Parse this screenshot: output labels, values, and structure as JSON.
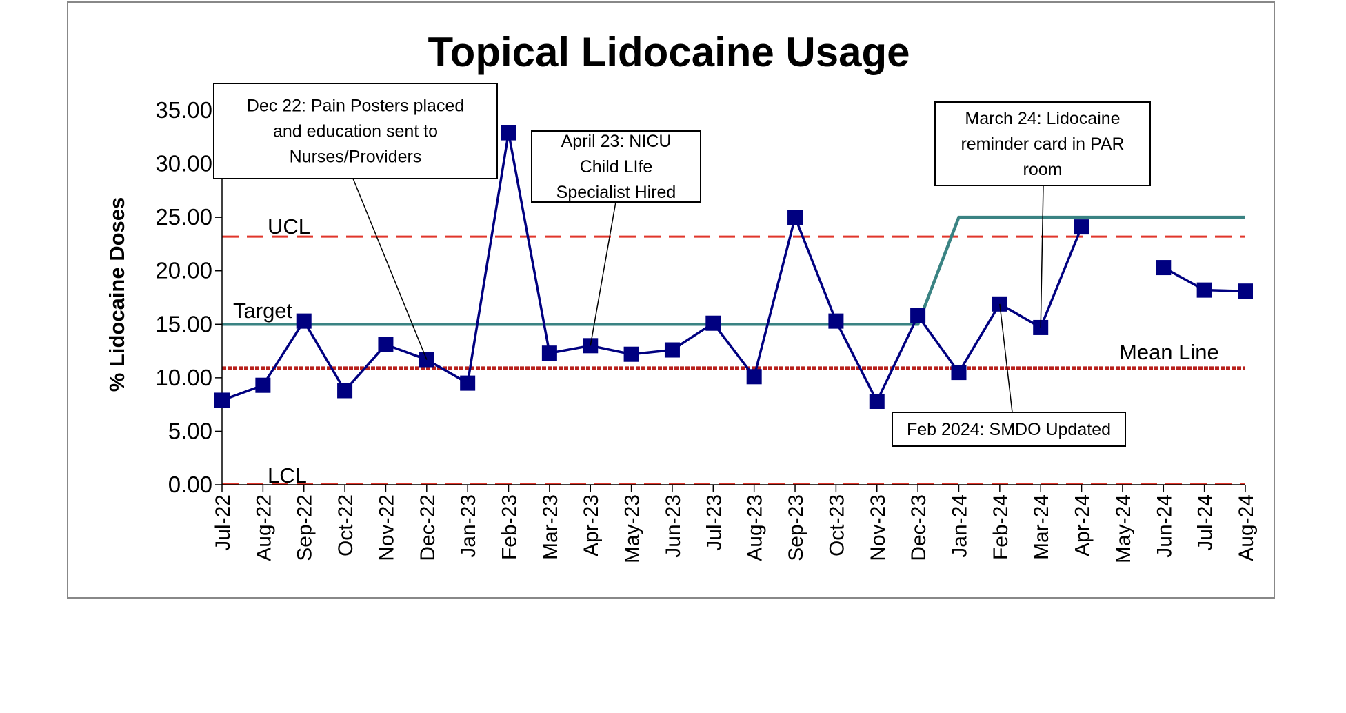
{
  "chart_data": {
    "type": "line",
    "title": "Topical Lidocaine Usage",
    "xlabel": "",
    "ylabel": "% Lidocaine Doses",
    "ylim": [
      0,
      35
    ],
    "yticks": [
      "0.00",
      "5.00",
      "10.00",
      "15.00",
      "20.00",
      "25.00",
      "30.00",
      "35.00"
    ],
    "categories": [
      "Jul-22",
      "Aug-22",
      "Sep-22",
      "Oct-22",
      "Nov-22",
      "Dec-22",
      "Jan-23",
      "Feb-23",
      "Mar-23",
      "Apr-23",
      "May-23",
      "Jun-23",
      "Jul-23",
      "Aug-23",
      "Sep-23",
      "Oct-23",
      "Nov-23",
      "Dec-23",
      "Jan-24",
      "Feb-24",
      "Mar-24",
      "Apr-24",
      "May-24",
      "Jun-24",
      "Jul-24",
      "Aug-24"
    ],
    "series": [
      {
        "values": [
          7.9,
          9.3,
          15.3,
          8.8,
          13.1,
          11.7,
          9.5,
          32.9,
          12.3,
          13.0,
          12.2,
          12.6,
          15.1,
          10.1,
          25.0,
          15.3,
          7.8,
          15.8,
          10.5,
          16.9,
          14.7,
          24.1,
          null,
          20.3,
          18.2,
          18.1
        ],
        "color": "#000080"
      }
    ],
    "reference_lines": {
      "ucl": {
        "label": "UCL",
        "value": 23.2,
        "color": "#e0362b"
      },
      "lcl": {
        "label": "LCL",
        "value": 0.0,
        "color": "#e0362b"
      },
      "mean": {
        "label": "Mean Line",
        "value": 10.9,
        "color": "#b8211c"
      },
      "target": {
        "label": "Target",
        "values": [
          15,
          15,
          15,
          15,
          15,
          15,
          15,
          15,
          15,
          15,
          15,
          15,
          15,
          15,
          15,
          15,
          15,
          15,
          25,
          25,
          25,
          25,
          25,
          25,
          25,
          25
        ],
        "color": "#3a8383"
      }
    },
    "annotations": [
      {
        "lines": [
          "Dec 22: Pain Posters placed",
          "and education sent to",
          "Nurses/Providers"
        ],
        "target_index": 5
      },
      {
        "lines": [
          "April 23: NICU",
          "Child  LIfe",
          "Specialist Hired"
        ],
        "target_index": 9
      },
      {
        "lines": [
          "March 24: Lidocaine",
          "reminder card in PAR",
          "room"
        ],
        "target_index": 20
      },
      {
        "lines": [
          "Feb 2024: SMDO Updated"
        ],
        "target_index": 19
      }
    ],
    "grid": false,
    "legend": "none"
  }
}
